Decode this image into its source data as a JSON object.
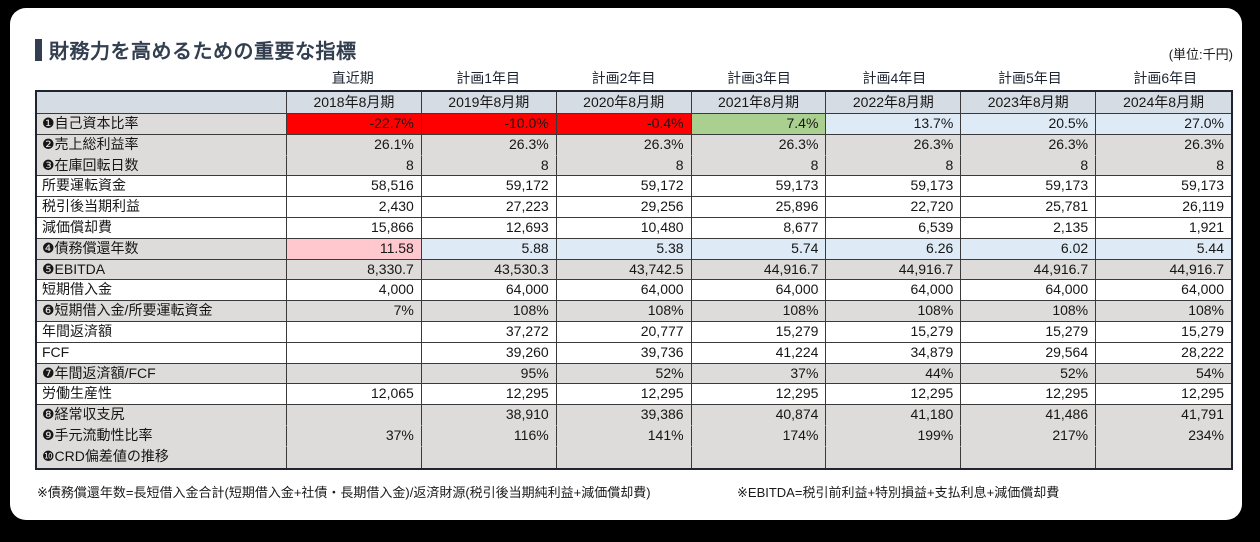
{
  "title": "財務力を高めるための重要な指標",
  "unit_label": "(単位:千円)",
  "colors": {
    "accent_navy": "#333F50",
    "header_blue_gray": "#D6DCE4",
    "negative_red": "#FF0000",
    "positive_green": "#A9D08E",
    "plan_blue": "#DEEAF6",
    "warning_pink": "#FFC7CE",
    "band_gray": "#DEDCDA",
    "white": "#FFFFFF",
    "outer_border": "#1E2530",
    "inner_border": "#3A3A3A"
  },
  "table": {
    "periods": [
      "直近期",
      "計画1年目",
      "計画2年目",
      "計画3年目",
      "計画4年目",
      "計画5年目",
      "計画6年目"
    ],
    "years": [
      "2018年8月期",
      "2019年8月期",
      "2020年8月期",
      "2021年8月期",
      "2022年8月期",
      "2023年8月期",
      "2024年8月期"
    ],
    "rows": [
      {
        "label": "❶自己資本比率",
        "labelBg": "band_gray",
        "values": [
          "-22.7%",
          "-10.0%",
          "-0.4%",
          "7.4%",
          "13.7%",
          "20.5%",
          "27.0%"
        ],
        "cellBg": [
          "negative_red",
          "negative_red",
          "negative_red",
          "positive_green",
          "plan_blue",
          "plan_blue",
          "plan_blue"
        ]
      },
      {
        "label": "❷売上総利益率",
        "labelBg": "band_gray",
        "joinBelow": true,
        "values": [
          "26.1%",
          "26.3%",
          "26.3%",
          "26.3%",
          "26.3%",
          "26.3%",
          "26.3%"
        ],
        "cellBg": [
          "band_gray",
          "band_gray",
          "band_gray",
          "band_gray",
          "band_gray",
          "band_gray",
          "band_gray"
        ]
      },
      {
        "label": "❸在庫回転日数",
        "labelBg": "band_gray",
        "values": [
          "8",
          "8",
          "8",
          "8",
          "8",
          "8",
          "8"
        ],
        "cellBg": [
          "band_gray",
          "band_gray",
          "band_gray",
          "band_gray",
          "band_gray",
          "band_gray",
          "band_gray"
        ]
      },
      {
        "label": "所要運転資金",
        "labelBg": "white",
        "values": [
          "58,516",
          "59,172",
          "59,172",
          "59,173",
          "59,173",
          "59,173",
          "59,173"
        ],
        "cellBg": [
          "white",
          "white",
          "white",
          "white",
          "white",
          "white",
          "white"
        ]
      },
      {
        "label": "税引後当期利益",
        "labelBg": "white",
        "values": [
          "2,430",
          "27,223",
          "29,256",
          "25,896",
          "22,720",
          "25,781",
          "26,119"
        ],
        "cellBg": [
          "white",
          "white",
          "white",
          "white",
          "white",
          "white",
          "white"
        ]
      },
      {
        "label": "減価償却費",
        "labelBg": "white",
        "values": [
          "15,866",
          "12,693",
          "10,480",
          "8,677",
          "6,539",
          "2,135",
          "1,921"
        ],
        "cellBg": [
          "white",
          "white",
          "white",
          "white",
          "white",
          "white",
          "white"
        ]
      },
      {
        "label": "❹債務償還年数",
        "labelBg": "band_gray",
        "values": [
          "11.58",
          "5.88",
          "5.38",
          "5.74",
          "6.26",
          "6.02",
          "5.44"
        ],
        "cellBg": [
          "warning_pink",
          "plan_blue",
          "plan_blue",
          "plan_blue",
          "plan_blue",
          "plan_blue",
          "plan_blue"
        ]
      },
      {
        "label": "❺EBITDA",
        "labelBg": "band_gray",
        "values": [
          "8,330.7",
          "43,530.3",
          "43,742.5",
          "44,916.7",
          "44,916.7",
          "44,916.7",
          "44,916.7"
        ],
        "cellBg": [
          "band_gray",
          "band_gray",
          "band_gray",
          "band_gray",
          "band_gray",
          "band_gray",
          "band_gray"
        ]
      },
      {
        "label": "短期借入金",
        "labelBg": "white",
        "values": [
          "4,000",
          "64,000",
          "64,000",
          "64,000",
          "64,000",
          "64,000",
          "64,000"
        ],
        "cellBg": [
          "white",
          "white",
          "white",
          "white",
          "white",
          "white",
          "white"
        ]
      },
      {
        "label": "❻短期借入金/所要運転資金",
        "labelBg": "band_gray",
        "values": [
          "7%",
          "108%",
          "108%",
          "108%",
          "108%",
          "108%",
          "108%"
        ],
        "cellBg": [
          "band_gray",
          "band_gray",
          "band_gray",
          "band_gray",
          "band_gray",
          "band_gray",
          "band_gray"
        ]
      },
      {
        "label": "年間返済額",
        "labelBg": "white",
        "values": [
          "",
          "37,272",
          "20,777",
          "15,279",
          "15,279",
          "15,279",
          "15,279"
        ],
        "cellBg": [
          "white",
          "white",
          "white",
          "white",
          "white",
          "white",
          "white"
        ]
      },
      {
        "label": "FCF",
        "labelBg": "white",
        "values": [
          "",
          "39,260",
          "39,736",
          "41,224",
          "34,879",
          "29,564",
          "28,222"
        ],
        "cellBg": [
          "white",
          "white",
          "white",
          "white",
          "white",
          "white",
          "white"
        ]
      },
      {
        "label": "❼年間返済額/FCF",
        "labelBg": "band_gray",
        "values": [
          "",
          "95%",
          "52%",
          "37%",
          "44%",
          "52%",
          "54%"
        ],
        "cellBg": [
          "band_gray",
          "band_gray",
          "band_gray",
          "band_gray",
          "band_gray",
          "band_gray",
          "band_gray"
        ]
      },
      {
        "label": "労働生産性",
        "labelBg": "white",
        "values": [
          "12,065",
          "12,295",
          "12,295",
          "12,295",
          "12,295",
          "12,295",
          "12,295"
        ],
        "cellBg": [
          "white",
          "white",
          "white",
          "white",
          "white",
          "white",
          "white"
        ]
      },
      {
        "label": "❽経常収支尻",
        "labelBg": "band_gray",
        "joinBelow": true,
        "values": [
          "",
          "38,910",
          "39,386",
          "40,874",
          "41,180",
          "41,486",
          "41,791"
        ],
        "cellBg": [
          "band_gray",
          "band_gray",
          "band_gray",
          "band_gray",
          "band_gray",
          "band_gray",
          "band_gray"
        ]
      },
      {
        "label": "❾手元流動性比率",
        "labelBg": "band_gray",
        "joinBelow": true,
        "values": [
          "37%",
          "116%",
          "141%",
          "174%",
          "199%",
          "217%",
          "234%"
        ],
        "cellBg": [
          "band_gray",
          "band_gray",
          "band_gray",
          "band_gray",
          "band_gray",
          "band_gray",
          "band_gray"
        ]
      },
      {
        "label": "❿CRD偏差値の推移",
        "labelBg": "band_gray",
        "values": [
          "",
          "",
          "",
          "",
          "",
          "",
          ""
        ],
        "cellBg": [
          "band_gray",
          "band_gray",
          "band_gray",
          "band_gray",
          "band_gray",
          "band_gray",
          "band_gray"
        ]
      }
    ]
  },
  "footnotes": [
    "※債務償還年数=長短借入金合計(短期借入金+社債・長期借入金)/返済財源(税引後当期純利益+減価償却費)",
    "※EBITDA=税引前利益+特別損益+支払利息+減価償却費"
  ]
}
